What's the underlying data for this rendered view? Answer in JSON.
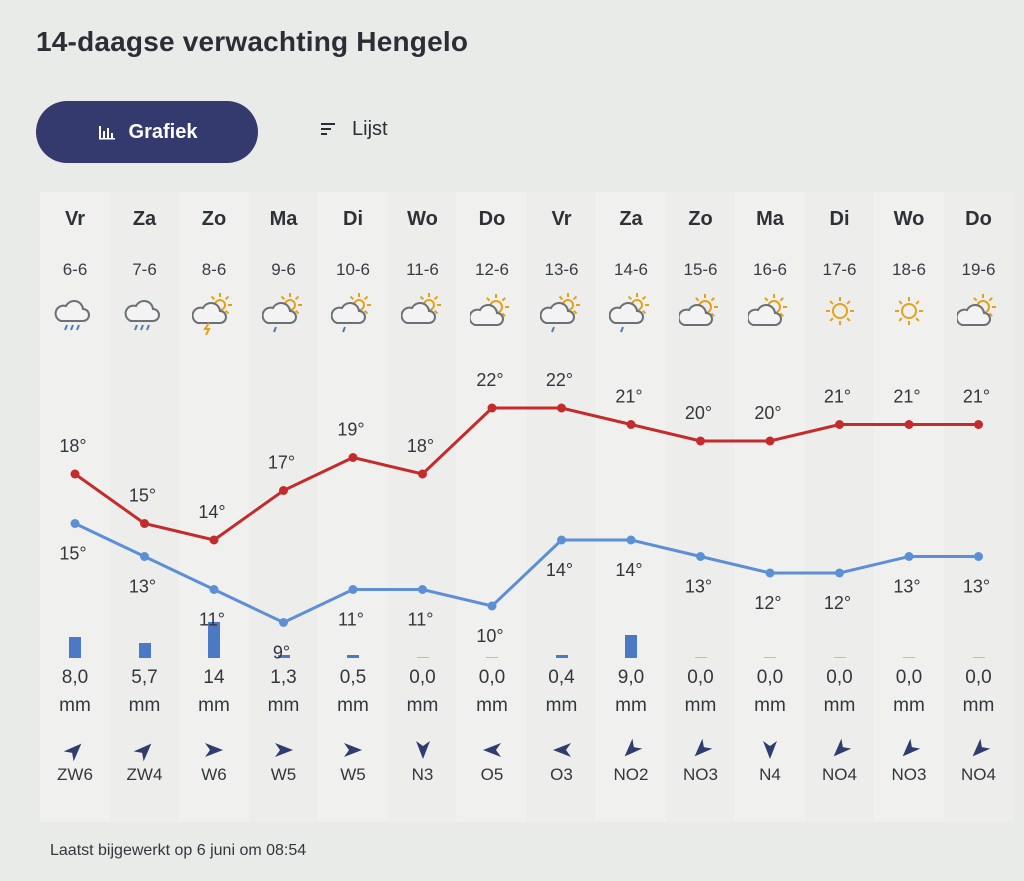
{
  "title": "14-daagse verwachting Hengelo",
  "tabs": [
    {
      "label": "Grafiek",
      "icon": "bar-chart-icon",
      "active": true
    },
    {
      "label": "Lijst",
      "icon": "list-icon",
      "active": false
    }
  ],
  "colors": {
    "high": "#c42b2b",
    "low": "#5c8fd6",
    "accent": "#343a6e",
    "bar": "#4b79c4"
  },
  "days": [
    {
      "day": "Vr",
      "date": "6-6",
      "icon": "rain-cloud-icon",
      "high": "18°",
      "low": "15°",
      "precip": "8,0",
      "unit": "mm",
      "wind": "ZW6",
      "wind_dir": "ZW"
    },
    {
      "day": "Za",
      "date": "7-6",
      "icon": "rain-cloud-icon",
      "high": "15°",
      "low": "13°",
      "precip": "5,7",
      "unit": "mm",
      "wind": "ZW4",
      "wind_dir": "ZW"
    },
    {
      "day": "Zo",
      "date": "8-6",
      "icon": "thunder-sun-cloud-icon",
      "high": "14°",
      "low": "11°",
      "precip": "14",
      "unit": "mm",
      "wind": "W6",
      "wind_dir": "W"
    },
    {
      "day": "Ma",
      "date": "9-6",
      "icon": "sun-rain-cloud-icon",
      "high": "17°",
      "low": "9°",
      "precip": "1,3",
      "unit": "mm",
      "wind": "W5",
      "wind_dir": "W"
    },
    {
      "day": "Di",
      "date": "10-6",
      "icon": "sun-rain-cloud-icon",
      "high": "19°",
      "low": "11°",
      "precip": "0,5",
      "unit": "mm",
      "wind": "W5",
      "wind_dir": "W"
    },
    {
      "day": "Wo",
      "date": "11-6",
      "icon": "cloud-sun-icon",
      "high": "18°",
      "low": "11°",
      "precip": "0,0",
      "unit": "mm",
      "wind": "N3",
      "wind_dir": "N"
    },
    {
      "day": "Do",
      "date": "12-6",
      "icon": "sun-cloud-icon",
      "high": "22°",
      "low": "10°",
      "precip": "0,0",
      "unit": "mm",
      "wind": "O5",
      "wind_dir": "O"
    },
    {
      "day": "Vr",
      "date": "13-6",
      "icon": "sun-rain-cloud-icon",
      "high": "22°",
      "low": "14°",
      "precip": "0,4",
      "unit": "mm",
      "wind": "O3",
      "wind_dir": "O"
    },
    {
      "day": "Za",
      "date": "14-6",
      "icon": "sun-rain-cloud-icon",
      "high": "21°",
      "low": "14°",
      "precip": "9,0",
      "unit": "mm",
      "wind": "NO2",
      "wind_dir": "NO"
    },
    {
      "day": "Zo",
      "date": "15-6",
      "icon": "sun-cloud-icon",
      "high": "20°",
      "low": "13°",
      "precip": "0,0",
      "unit": "mm",
      "wind": "NO3",
      "wind_dir": "NO"
    },
    {
      "day": "Ma",
      "date": "16-6",
      "icon": "sun-cloud-icon",
      "high": "20°",
      "low": "12°",
      "precip": "0,0",
      "unit": "mm",
      "wind": "N4",
      "wind_dir": "N"
    },
    {
      "day": "Di",
      "date": "17-6",
      "icon": "sun-icon",
      "high": "21°",
      "low": "12°",
      "precip": "0,0",
      "unit": "mm",
      "wind": "NO4",
      "wind_dir": "NO"
    },
    {
      "day": "Wo",
      "date": "18-6",
      "icon": "sun-icon",
      "high": "21°",
      "low": "13°",
      "precip": "0,0",
      "unit": "mm",
      "wind": "NO3",
      "wind_dir": "NO"
    },
    {
      "day": "Do",
      "date": "19-6",
      "icon": "sun-cloud-icon",
      "high": "21°",
      "low": "13°",
      "precip": "0,0",
      "unit": "mm",
      "wind": "NO4",
      "wind_dir": "NO"
    }
  ],
  "chart_data": {
    "type": "line",
    "categories": [
      "6-6",
      "7-6",
      "8-6",
      "9-6",
      "10-6",
      "11-6",
      "12-6",
      "13-6",
      "14-6",
      "15-6",
      "16-6",
      "17-6",
      "18-6",
      "19-6"
    ],
    "series": [
      {
        "values": [
          18,
          15,
          14,
          17,
          19,
          18,
          22,
          22,
          21,
          20,
          20,
          21,
          21,
          21
        ]
      },
      {
        "values": [
          15,
          13,
          11,
          9,
          11,
          11,
          10,
          14,
          14,
          13,
          12,
          12,
          13,
          13
        ]
      }
    ],
    "precipitation_mm": [
      8.0,
      5.7,
      14,
      1.3,
      0.5,
      0.0,
      0.0,
      0.4,
      9.0,
      0.0,
      0.0,
      0.0,
      0.0,
      0.0
    ]
  },
  "footer": {
    "updated": "Laatst bijgewerkt op 6 juni om 08:54"
  }
}
